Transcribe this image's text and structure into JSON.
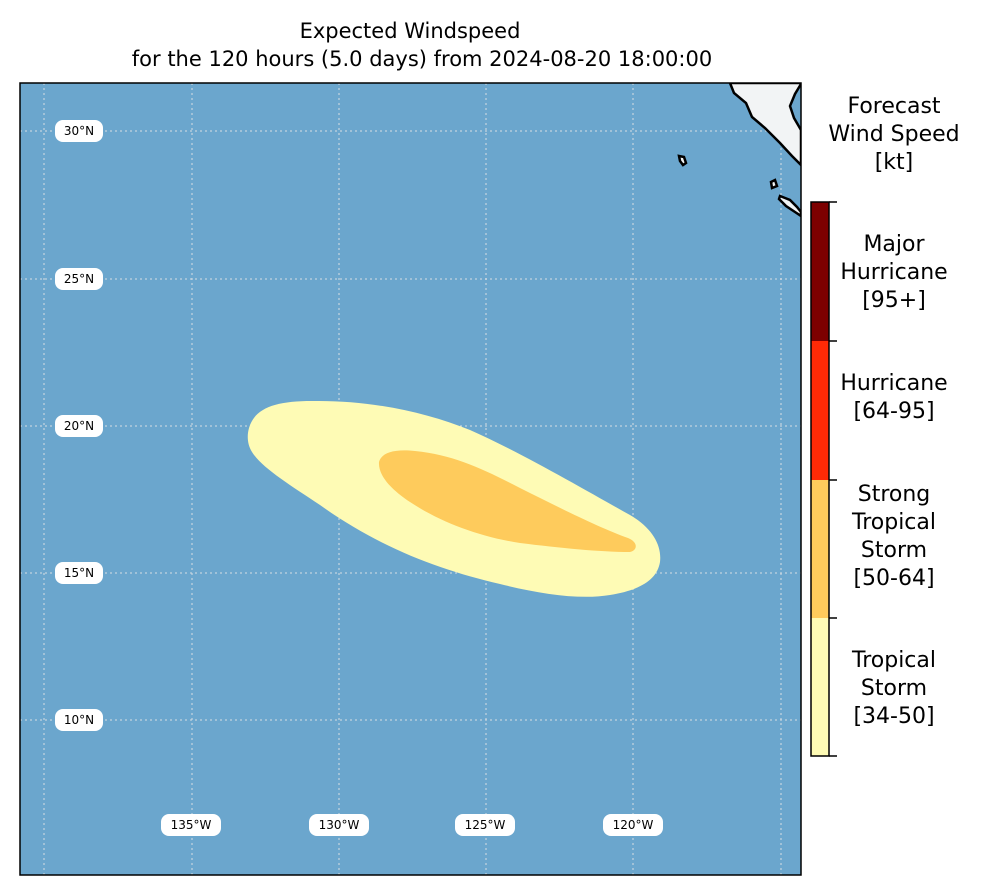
{
  "title": {
    "line1": "Expected Windspeed",
    "line2": "for the 120 hours (5.0 days) from 2024-08-20 18:00:00"
  },
  "map": {
    "ocean_color": "#6ba6cd",
    "land_color": "#f2f4f5",
    "lat_labels": [
      "30°N",
      "25°N",
      "20°N",
      "15°N",
      "10°N"
    ],
    "lon_labels": [
      "135°W",
      "130°W",
      "125°W",
      "120°W"
    ],
    "swath": {
      "tropical_storm_color": "#fefbb5",
      "strong_tropical_storm_color": "#fecb5c"
    }
  },
  "colorbar": {
    "title": [
      "Forecast",
      "Wind Speed",
      "[kt]"
    ],
    "categories": [
      {
        "lines": [
          "Major",
          "Hurricane",
          "[95+]"
        ],
        "color": "#7d0000"
      },
      {
        "lines": [
          "Hurricane",
          "[64-95]"
        ],
        "color": "#ff2a06"
      },
      {
        "lines": [
          "Strong",
          "Tropical",
          "Storm",
          "[50-64]"
        ],
        "color": "#fecb5c"
      },
      {
        "lines": [
          "Tropical",
          "Storm",
          "[34-50]"
        ],
        "color": "#fefbb5"
      }
    ]
  }
}
